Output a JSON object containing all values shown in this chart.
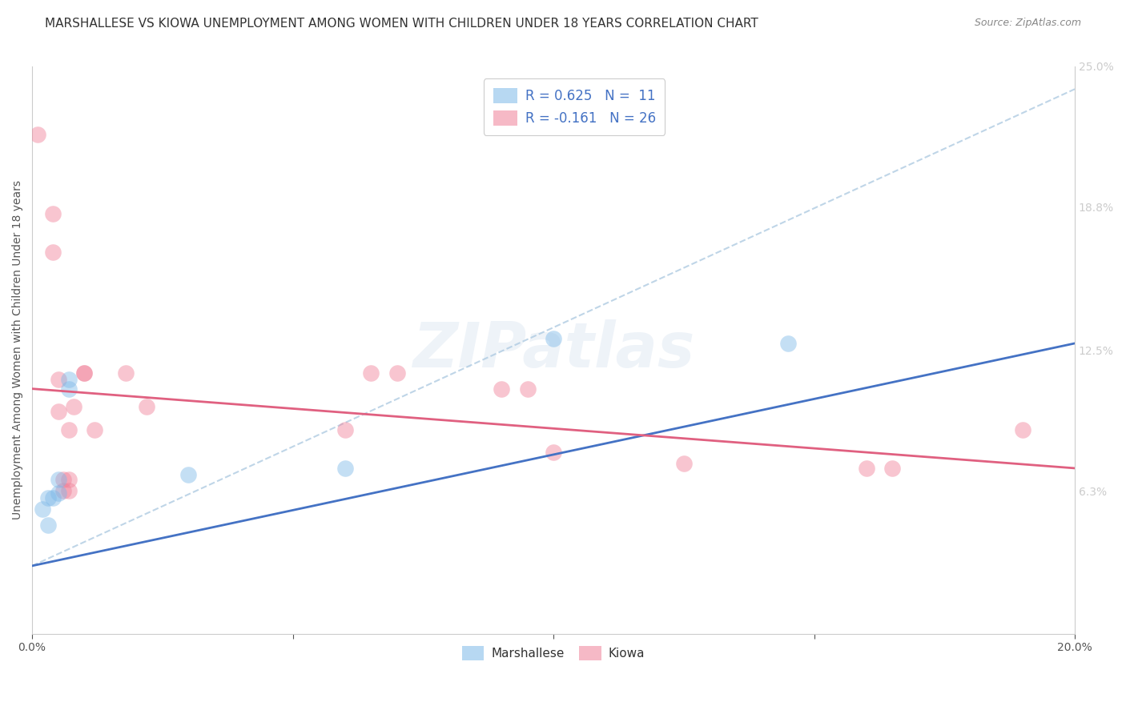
{
  "title": "MARSHALLESE VS KIOWA UNEMPLOYMENT AMONG WOMEN WITH CHILDREN UNDER 18 YEARS CORRELATION CHART",
  "source": "Source: ZipAtlas.com",
  "ylabel": "Unemployment Among Women with Children Under 18 years",
  "xlim": [
    0.0,
    0.2
  ],
  "ylim": [
    0.0,
    0.25
  ],
  "ytick_labels_right": [
    "6.3%",
    "12.5%",
    "18.8%",
    "25.0%"
  ],
  "ytick_vals_right": [
    0.063,
    0.125,
    0.188,
    0.25
  ],
  "watermark": "ZIPatlas",
  "marshallese_color": "#7db8e8",
  "kiowa_color": "#f08098",
  "marshallese_line_color": "#4472c4",
  "kiowa_line_color": "#e06080",
  "dashed_line_color": "#aac8e0",
  "marshallese_scatter": [
    [
      0.002,
      0.055
    ],
    [
      0.003,
      0.048
    ],
    [
      0.003,
      0.06
    ],
    [
      0.004,
      0.06
    ],
    [
      0.005,
      0.062
    ],
    [
      0.005,
      0.068
    ],
    [
      0.007,
      0.108
    ],
    [
      0.007,
      0.112
    ],
    [
      0.03,
      0.07
    ],
    [
      0.06,
      0.073
    ],
    [
      0.1,
      0.13
    ],
    [
      0.145,
      0.128
    ]
  ],
  "kiowa_scatter": [
    [
      0.001,
      0.22
    ],
    [
      0.004,
      0.185
    ],
    [
      0.004,
      0.168
    ],
    [
      0.005,
      0.112
    ],
    [
      0.005,
      0.098
    ],
    [
      0.006,
      0.063
    ],
    [
      0.006,
      0.068
    ],
    [
      0.007,
      0.068
    ],
    [
      0.007,
      0.063
    ],
    [
      0.007,
      0.09
    ],
    [
      0.008,
      0.1
    ],
    [
      0.01,
      0.115
    ],
    [
      0.01,
      0.115
    ],
    [
      0.012,
      0.09
    ],
    [
      0.018,
      0.115
    ],
    [
      0.022,
      0.1
    ],
    [
      0.06,
      0.09
    ],
    [
      0.065,
      0.115
    ],
    [
      0.07,
      0.115
    ],
    [
      0.09,
      0.108
    ],
    [
      0.095,
      0.108
    ],
    [
      0.1,
      0.08
    ],
    [
      0.125,
      0.075
    ],
    [
      0.16,
      0.073
    ],
    [
      0.165,
      0.073
    ],
    [
      0.19,
      0.09
    ]
  ],
  "marshallese_trendline": [
    0.0,
    0.2,
    0.03,
    0.128
  ],
  "kiowa_trendline": [
    0.0,
    0.2,
    0.108,
    0.073
  ],
  "dashed_trendline": [
    0.0,
    0.2,
    0.03,
    0.24
  ],
  "background_color": "#ffffff",
  "grid_color": "#dddddd",
  "title_fontsize": 11,
  "axis_label_fontsize": 10,
  "tick_fontsize": 10
}
